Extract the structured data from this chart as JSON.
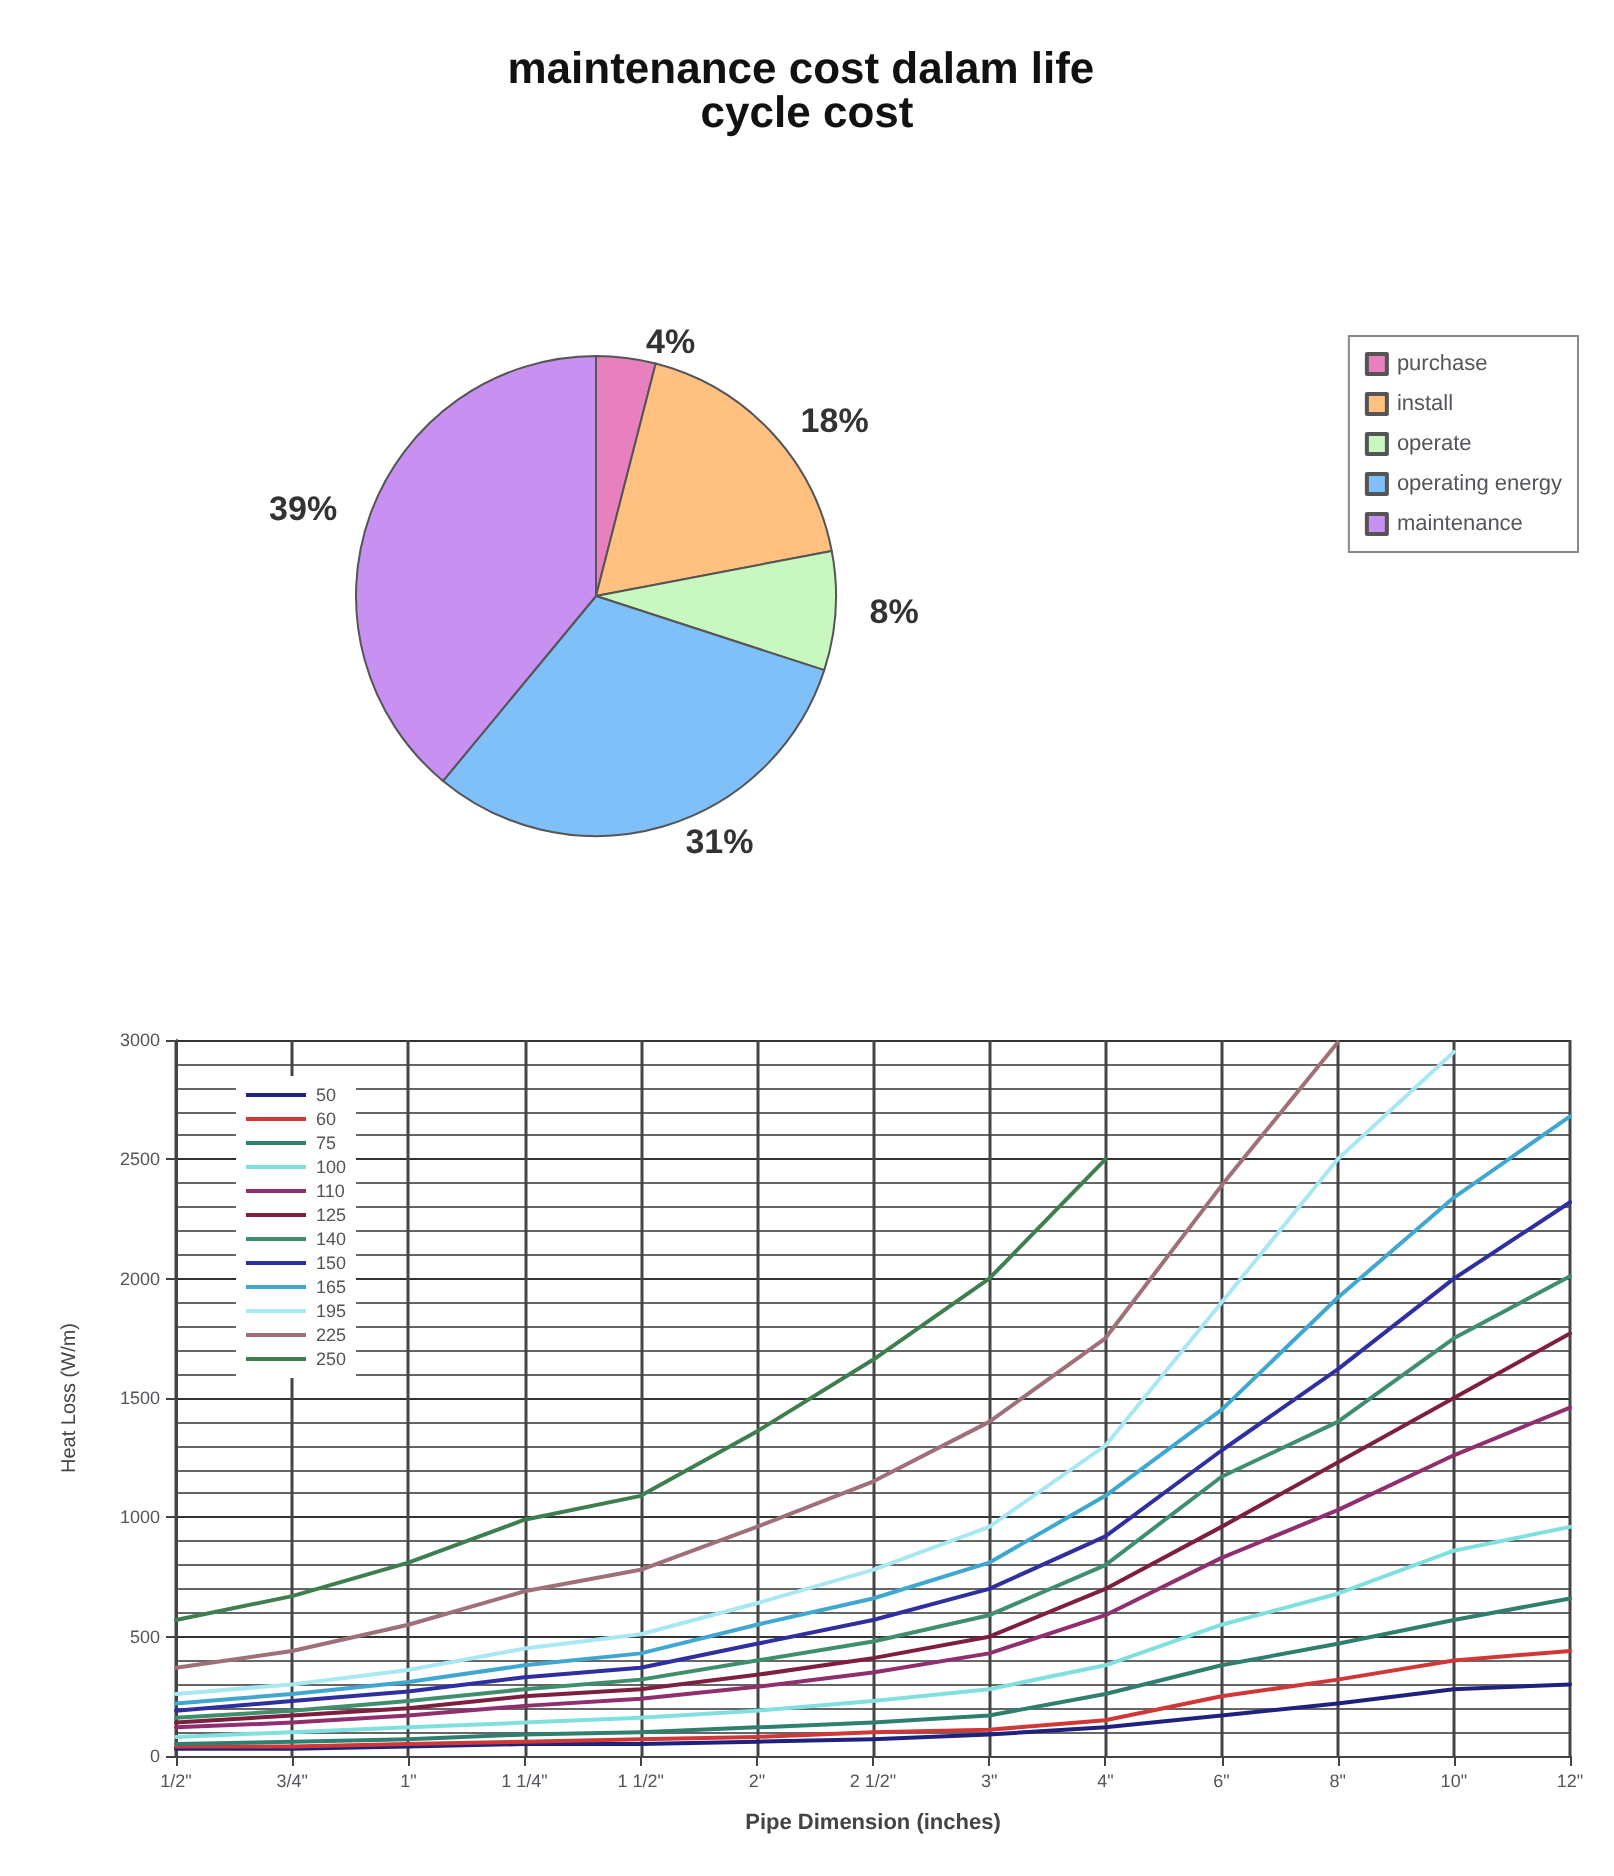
{
  "chart_data": [
    {
      "type": "pie",
      "title": "maintenance cost dalam life cycle cost",
      "categories": [
        "purchase",
        "install",
        "operate",
        "operating energy",
        "maintenance"
      ],
      "values": [
        4,
        18,
        8,
        31,
        39
      ],
      "value_labels": [
        "4%",
        "18%",
        "8%",
        "31%",
        "39%"
      ],
      "colors": [
        "#e87fbf",
        "#ffc080",
        "#c8f8c0",
        "#80c0f8",
        "#c890f0"
      ],
      "legend": "right"
    },
    {
      "type": "line",
      "xlabel": "Pipe Dimension (inches)",
      "ylabel": "Heat Loss (W/m)",
      "categories": [
        "1/2\"",
        "3/4\"",
        "1\"",
        "1 1/4\"",
        "1 1/2\"",
        "2\"",
        "2 1/2\"",
        "3\"",
        "4\"",
        "6\"",
        "8\"",
        "10\"",
        "12\""
      ],
      "ylim": [
        0,
        3000
      ],
      "yticks": [
        0,
        500,
        1000,
        1500,
        2000,
        2500,
        3000
      ],
      "grid": true,
      "legend": "top left",
      "marker": "none",
      "line_style": "solid",
      "series": [
        {
          "name": "50",
          "color": "#20207f",
          "values": [
            30,
            30,
            40,
            50,
            50,
            60,
            70,
            90,
            120,
            170,
            220,
            280,
            300
          ]
        },
        {
          "name": "60",
          "color": "#d03838",
          "values": [
            40,
            40,
            50,
            60,
            70,
            80,
            100,
            110,
            150,
            250,
            320,
            400,
            440
          ]
        },
        {
          "name": "75",
          "color": "#2f7f6f",
          "values": [
            50,
            60,
            70,
            90,
            100,
            120,
            140,
            170,
            260,
            380,
            470,
            570,
            660
          ]
        },
        {
          "name": "100",
          "color": "#80e0e0",
          "values": [
            80,
            100,
            120,
            140,
            160,
            190,
            230,
            280,
            380,
            550,
            680,
            860,
            960
          ]
        },
        {
          "name": "110",
          "color": "#8f2f6f",
          "values": [
            120,
            140,
            170,
            210,
            240,
            290,
            350,
            430,
            590,
            830,
            1030,
            1260,
            1460
          ]
        },
        {
          "name": "125",
          "color": "#7f1f3f",
          "values": [
            140,
            170,
            200,
            250,
            280,
            340,
            410,
            500,
            700,
            960,
            1230,
            1500,
            1770
          ]
        },
        {
          "name": "140",
          "color": "#3f8f6f",
          "values": [
            160,
            190,
            230,
            280,
            320,
            400,
            480,
            590,
            800,
            1170,
            1400,
            1750,
            2010
          ]
        },
        {
          "name": "150",
          "color": "#2f2fa0",
          "values": [
            190,
            230,
            270,
            330,
            370,
            470,
            570,
            700,
            920,
            1280,
            1620,
            2000,
            2320
          ]
        },
        {
          "name": "165",
          "color": "#40a8d0",
          "values": [
            220,
            260,
            310,
            380,
            430,
            550,
            660,
            810,
            1090,
            1450,
            1920,
            2340,
            2680
          ]
        },
        {
          "name": "195",
          "color": "#a8e8f4",
          "values": [
            260,
            300,
            360,
            450,
            510,
            640,
            780,
            960,
            1300,
            1900,
            2500,
            2950,
            null
          ]
        },
        {
          "name": "225",
          "color": "#a07078",
          "values": [
            370,
            440,
            550,
            690,
            780,
            960,
            1150,
            1400,
            1750,
            2390,
            2990,
            null,
            null
          ]
        },
        {
          "name": "250",
          "color": "#3f7f4f",
          "values": [
            570,
            670,
            810,
            990,
            1090,
            1360,
            1660,
            2000,
            2500,
            null,
            null,
            null,
            null
          ]
        }
      ]
    }
  ]
}
